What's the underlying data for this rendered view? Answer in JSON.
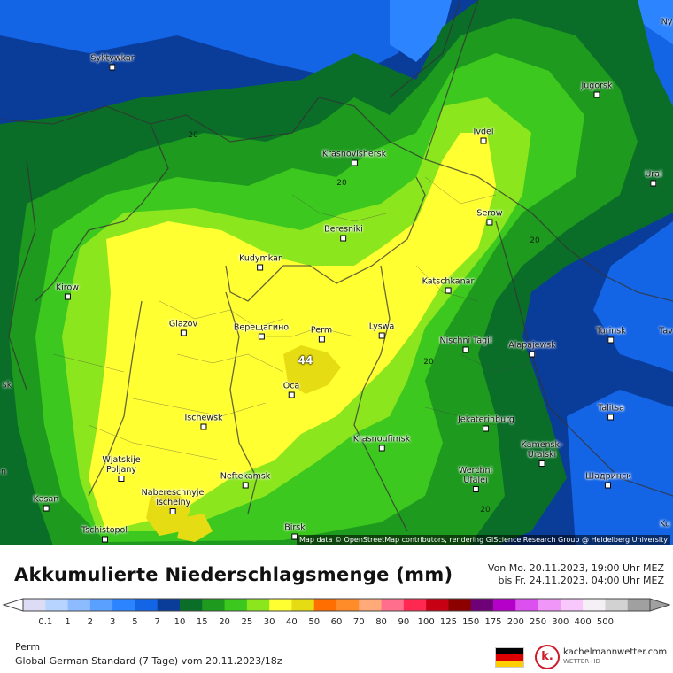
{
  "map": {
    "attribution": "Map data © OpenStreetMap contributors, rendering GIScience Research Group @ Heidelberg University",
    "max_value": "44",
    "cities": [
      {
        "name": "Syktywkar",
        "label": "Syktywkar"
      },
      {
        "name": "Krasnovishersk",
        "label": "Krasnovishersk"
      },
      {
        "name": "Jugorsk",
        "label": "Jugorsk"
      },
      {
        "name": "Ivdel",
        "label": "Ivdel"
      },
      {
        "name": "Urai",
        "label": "Urai"
      },
      {
        "name": "Beresniki",
        "label": "Beresniki"
      },
      {
        "name": "Serow",
        "label": "Serow"
      },
      {
        "name": "Kudymkar",
        "label": "Kudymkar"
      },
      {
        "name": "Kirow",
        "label": "Kirow"
      },
      {
        "name": "Katschkanar",
        "label": "Katschkanar"
      },
      {
        "name": "Glazov",
        "label": "Glazov"
      },
      {
        "name": "Vereshchagino",
        "label": "Верещагино"
      },
      {
        "name": "Perm",
        "label": "Perm"
      },
      {
        "name": "Lyswa",
        "label": "Lyswa"
      },
      {
        "name": "Nischni Tagil",
        "label": "Nischni Tagil"
      },
      {
        "name": "Alapajewsk",
        "label": "Alapajewsk"
      },
      {
        "name": "Turinsk",
        "label": "Turinsk"
      },
      {
        "name": "Ocha",
        "label": "Оса"
      },
      {
        "name": "Ischewsk",
        "label": "Ischewsk"
      },
      {
        "name": "Jekaterinburg",
        "label": "Jekaterinburg"
      },
      {
        "name": "Talitsa",
        "label": "Talitsa"
      },
      {
        "name": "Krasnoufimsk",
        "label": "Krasnoufimsk"
      },
      {
        "name": "Kamensk-Uralski",
        "label": "Kamensk-\nUralski"
      },
      {
        "name": "Wjatskije Poljany",
        "label": "Wjatskije\nPoljany"
      },
      {
        "name": "Neftekamsk",
        "label": "Neftekamsk"
      },
      {
        "name": "Werchni Ufalei",
        "label": "Werchni\nUfalei"
      },
      {
        "name": "Shadrinsk",
        "label": "Шадринск"
      },
      {
        "name": "Nabereschnyje Tschelny",
        "label": "Nabereschnyje\nTschelny"
      },
      {
        "name": "Kasan",
        "label": "Kasan"
      },
      {
        "name": "Birsk",
        "label": "Birsk"
      },
      {
        "name": "Tschistopol",
        "label": "Tschistopol"
      }
    ],
    "edge_labels": [
      "Ny",
      "Tav",
      "sk",
      "Ku",
      "n"
    ],
    "contour_labels": [
      "20",
      "20",
      "20",
      "20",
      "20",
      "20"
    ]
  },
  "legend": {
    "title": "Akkumulierte Niederschlagsmenge (mm)",
    "period_line1": "Von Mo. 20.11.2023, 19:00 Uhr MEZ",
    "period_line2": "bis Fr. 24.11.2023, 04:00 Uhr MEZ",
    "ticks": [
      "0.1",
      "1",
      "2",
      "3",
      "5",
      "7",
      "10",
      "15",
      "20",
      "25",
      "30",
      "40",
      "50",
      "60",
      "70",
      "80",
      "90",
      "100",
      "125",
      "150",
      "175",
      "200",
      "250",
      "300",
      "400",
      "500"
    ],
    "colors": [
      "#dcdcf5",
      "#b6d4ff",
      "#8cbcff",
      "#5aa0ff",
      "#2d84ff",
      "#1464e6",
      "#0a3c9a",
      "#0a6e28",
      "#1e9a1e",
      "#3cc81e",
      "#8ce61e",
      "#ffff32",
      "#e6dc14",
      "#ff6e00",
      "#ff8c28",
      "#ffaa78",
      "#ff6e8c",
      "#ff2850",
      "#c80014",
      "#8c0000",
      "#6e0078",
      "#b400c8",
      "#dc50f0",
      "#f096f8",
      "#f8c8fc",
      "#f5f0f5",
      "#d2d2d2",
      "#a0a0a0"
    ]
  },
  "footer": {
    "region": "Perm",
    "model": "Global German Standard (7 Tage)  vom  20.11.2023/18z",
    "brand": "kachelmannwetter.com",
    "brand_sub": "WETTER HD",
    "logo_letter": "k."
  }
}
